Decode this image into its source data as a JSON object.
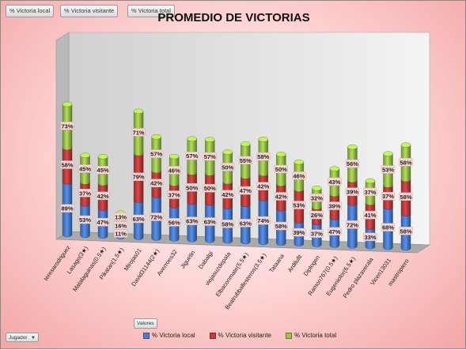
{
  "field_buttons": [
    "% Victoria local",
    "% Victoria visitante",
    "% Victoria total"
  ],
  "values_button": "Valores",
  "axis_field": {
    "label": "Jugador",
    "arrow": "▼"
  },
  "colors": {
    "local": "#4a7fd4",
    "visitante": "#c43c3c",
    "total": "#9bc44a"
  },
  "chart_data": {
    "type": "bar",
    "subtype": "3d-stacked-column",
    "title": "PROMEDIO DE VICTORIAS",
    "legend_position": "bottom",
    "categories": [
      "teresarodriguez",
      "Lasago(3★)",
      "Matalaguinas(0.5★)",
      "Pikatan(1.5★)",
      "Mirojas01",
      "David31144(2★)",
      "Averroes32",
      "Jiguetin",
      "Dabalgi",
      "viejasuzdepata",
      "Elbaconmate(5.5★)",
      "Beatrubballesteros(3.5★)",
      "Tataana",
      "Ardilufit",
      "Diplogen",
      "Ramon767(0.5★)",
      "Eugeniolor(6.5★)",
      "Pedro plazaverala",
      "Vicen13031",
      "mastropiero"
    ],
    "series": [
      {
        "name": "% Victoria local",
        "values": [
          89,
          53,
          47,
          11,
          63,
          72,
          56,
          63,
          63,
          58,
          63,
          74,
          58,
          39,
          37,
          47,
          72,
          33,
          68,
          58
        ]
      },
      {
        "name": "% Victoria visitante",
        "values": [
          58,
          37,
          42,
          16,
          79,
          42,
          37,
          50,
          50,
          42,
          47,
          42,
          42,
          53,
          26,
          39,
          39,
          41,
          37,
          58
        ]
      },
      {
        "name": "% Victoria total",
        "values": [
          73,
          45,
          45,
          13,
          71,
          57,
          46,
          57,
          57,
          50,
          55,
          58,
          50,
          46,
          32,
          43,
          56,
          37,
          53,
          58
        ]
      }
    ],
    "data_label_text": [
      [
        "89%",
        "53%",
        "47%",
        "11%",
        "63%",
        "72%",
        "56%",
        "63%",
        "63%",
        "58%",
        "63%",
        "74%",
        "58%",
        "39%",
        "37%",
        "47%",
        "72%",
        "33%",
        "68%",
        "58%"
      ],
      [
        "58%",
        "37%",
        "42%",
        "16%",
        "79%",
        "42%",
        "37%",
        "50%",
        "50%",
        "42%",
        "47%",
        "42%",
        "42%",
        "53%",
        "26%",
        "39%",
        "39%",
        "41%",
        "37%",
        "58%"
      ],
      [
        "73%",
        "45%",
        "45%",
        "13%",
        "71%",
        "57%",
        "46%",
        "57%",
        "57%",
        "50%",
        "55%",
        "58%",
        "50%",
        "46%",
        "32%",
        "43%",
        "56%",
        "37%",
        "53%",
        "58%"
      ]
    ]
  }
}
